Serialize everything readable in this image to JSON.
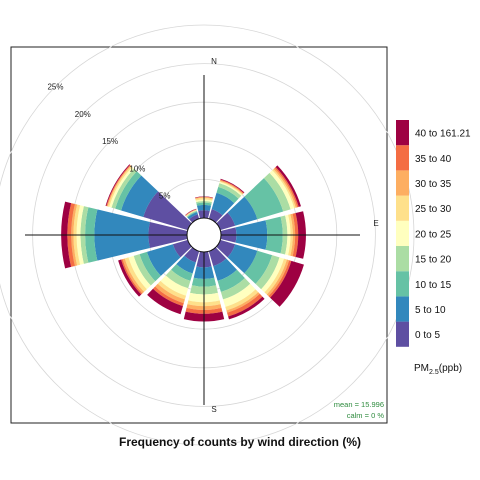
{
  "chart_data": {
    "type": "windrose",
    "title": "Frequency of counts by wind direction (%)",
    "compass": [
      "N",
      "E",
      "S"
    ],
    "ring_labels": [
      "5%",
      "10%",
      "15%",
      "20%",
      "25%"
    ],
    "rings": [
      5,
      10,
      15,
      20,
      25
    ],
    "max_radius_value": 25,
    "legend_title": "PM",
    "legend_subscript": "2.5",
    "legend_unit": "(ppb)",
    "bins": [
      "0 to 5",
      "5 to 10",
      "10 to 15",
      "15 to 20",
      "20 to 25",
      "25 to 30",
      "30 to 35",
      "35 to 40",
      "40 to 161.21"
    ],
    "colors": [
      "#5e4fa2",
      "#3288bd",
      "#66c2a5",
      "#abdda4",
      "#e6f598",
      "#fee08b",
      "#fdae61",
      "#f46d43",
      "#d53e4f",
      "#9e0142"
    ],
    "legend_colors": [
      "#5e4fa2",
      "#3288bd",
      "#66c2a5",
      "#abdda4",
      "#ffffbf",
      "#fee08b",
      "#fdae61",
      "#f46d43",
      "#9e0142"
    ],
    "directions": [
      0,
      30,
      60,
      90,
      120,
      150,
      180,
      210,
      240,
      270,
      300,
      330
    ],
    "cumulative": [
      {
        "dir": 0,
        "values": [
          1.0,
          1.7,
          2.0,
          2.2,
          2.4,
          2.6,
          2.7,
          2.75,
          2.8
        ]
      },
      {
        "dir": 30,
        "values": [
          1.3,
          3.5,
          4.3,
          4.8,
          5.0,
          5.1,
          5.2,
          5.3,
          5.4
        ]
      },
      {
        "dir": 60,
        "values": [
          2.0,
          5.0,
          8.5,
          9.5,
          10.0,
          10.2,
          10.4,
          10.6,
          10.9
        ]
      },
      {
        "dir": 90,
        "values": [
          2.0,
          6.0,
          8.0,
          8.6,
          9.0,
          9.3,
          9.6,
          10.0,
          11.0
        ]
      },
      {
        "dir": 120,
        "values": [
          2.0,
          5.0,
          7.0,
          8.0,
          8.6,
          9.0,
          9.3,
          9.6,
          11.3
        ]
      },
      {
        "dir": 150,
        "values": [
          2.0,
          4.0,
          5.5,
          6.5,
          7.5,
          8.0,
          8.3,
          8.8,
          9.2
        ]
      },
      {
        "dir": 180,
        "values": [
          2.0,
          3.5,
          4.5,
          5.5,
          6.5,
          7.0,
          7.5,
          8.0,
          9.0
        ]
      },
      {
        "dir": 210,
        "values": [
          1.5,
          3.0,
          4.0,
          5.0,
          6.0,
          6.5,
          7.0,
          7.4,
          8.5
        ]
      },
      {
        "dir": 240,
        "values": [
          2.0,
          5.5,
          6.5,
          7.3,
          8.0,
          8.5,
          8.8,
          9.0,
          9.4
        ]
      },
      {
        "dir": 270,
        "values": [
          5.0,
          12.0,
          13.2,
          13.8,
          14.3,
          14.7,
          15.0,
          15.5,
          16.3
        ]
      },
      {
        "dir": 300,
        "values": [
          6.0,
          9.0,
          9.8,
          10.3,
          10.6,
          10.8,
          10.9,
          11.0,
          11.1
        ]
      },
      {
        "dir": 330,
        "values": [
          0.6,
          0.9,
          1.0,
          1.1,
          1.15,
          1.2,
          1.25,
          1.3,
          1.35
        ]
      }
    ],
    "stats": {
      "mean": "mean = 15.996",
      "calm": "calm = 0 %"
    }
  }
}
